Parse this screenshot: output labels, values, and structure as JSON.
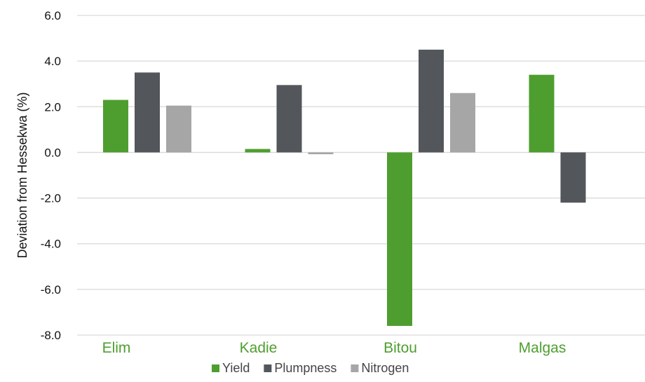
{
  "chart_data": {
    "type": "bar",
    "title": "",
    "xlabel": "",
    "ylabel": "Deviation  from Hessekwa (%)",
    "categories": [
      "Elim",
      "Kadie",
      "Bitou",
      "Malgas"
    ],
    "series": [
      {
        "name": "Yield",
        "values": [
          2.3,
          0.15,
          -7.6,
          3.4
        ]
      },
      {
        "name": "Plumpness",
        "values": [
          3.5,
          2.95,
          4.5,
          -2.2
        ]
      },
      {
        "name": "Nitrogen",
        "values": [
          2.05,
          -0.08,
          2.6,
          null
        ]
      }
    ],
    "ylim": [
      -8.0,
      6.0
    ],
    "yticks": [
      "6.0",
      "4.0",
      "2.0",
      "0.0",
      "-2.0",
      "-4.0",
      "-6.0",
      "-8.0"
    ],
    "grid": true,
    "legend_position": "bottom"
  },
  "colors": {
    "Yield": "#4e9e2f",
    "Plumpness": "#53565a",
    "Nitrogen": "#a6a6a6",
    "category_label": "#4e9e2f"
  }
}
